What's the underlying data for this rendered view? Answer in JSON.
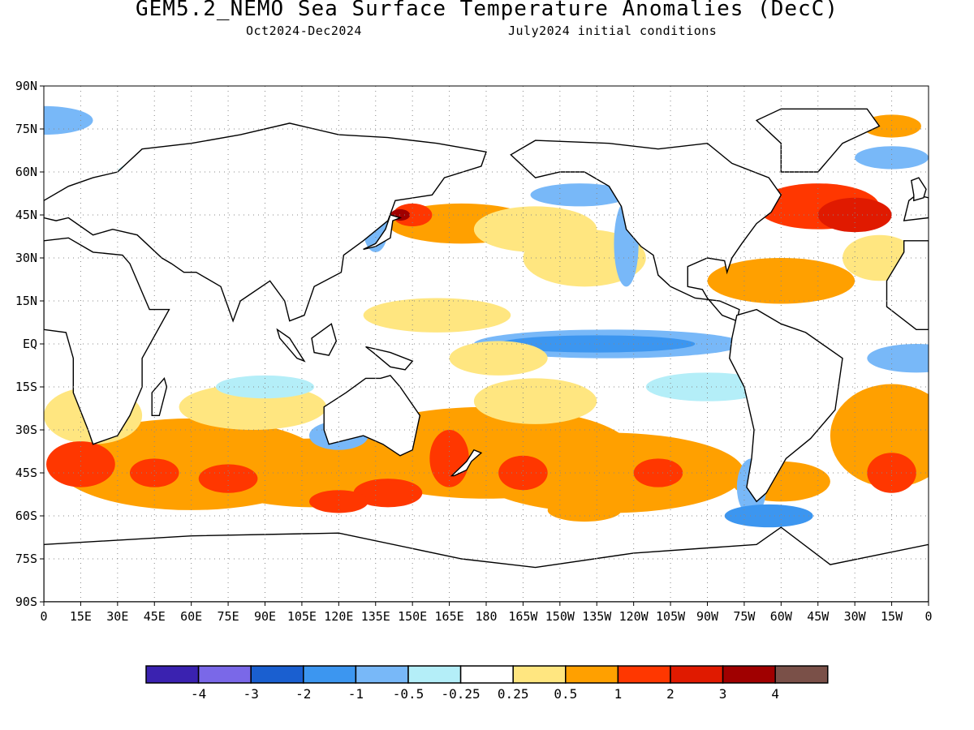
{
  "header": {
    "title": "GEM5.2_NEMO Sea Surface Temperature Anomalies (DecC)",
    "period": "Oct2024-Dec2024",
    "init": "July2024 initial conditions"
  },
  "axes": {
    "lat_labels": [
      "90N",
      "75N",
      "60N",
      "45N",
      "30N",
      "15N",
      "EQ",
      "15S",
      "30S",
      "45S",
      "60S",
      "75S",
      "90S"
    ],
    "lon_labels": [
      "0",
      "15E",
      "30E",
      "45E",
      "60E",
      "75E",
      "90E",
      "105E",
      "120E",
      "135E",
      "150E",
      "165E",
      "180",
      "165W",
      "150W",
      "135W",
      "120W",
      "105W",
      "90W",
      "75W",
      "60W",
      "45W",
      "30W",
      "15W",
      "0"
    ]
  },
  "colorbar": {
    "colors": [
      "#3a22b0",
      "#7a68e8",
      "#1a5fd0",
      "#3c96f0",
      "#78b8f8",
      "#b4eef8",
      "#ffffff",
      "#ffe680",
      "#ffa000",
      "#ff3700",
      "#e01a00",
      "#a00000",
      "#7a5048"
    ],
    "labels": [
      "-4",
      "-3",
      "-2",
      "-1",
      "-0.5",
      "-0.25",
      "0.25",
      "0.5",
      "1",
      "2",
      "3",
      "4"
    ]
  },
  "map_data": {
    "projection": "equirectangular",
    "lon_range": [
      0,
      360
    ],
    "lat_range": [
      -90,
      90
    ],
    "grid": true,
    "units": "DecC",
    "notable_features": [
      "Negative anomaly (La Nina-like cooling) along central/eastern equatorial Pacific",
      "Strong warm anomalies in NW Atlantic and Kuroshio extension",
      "Broad warm anomalies across Southern Hemisphere mid-latitudes"
    ]
  }
}
